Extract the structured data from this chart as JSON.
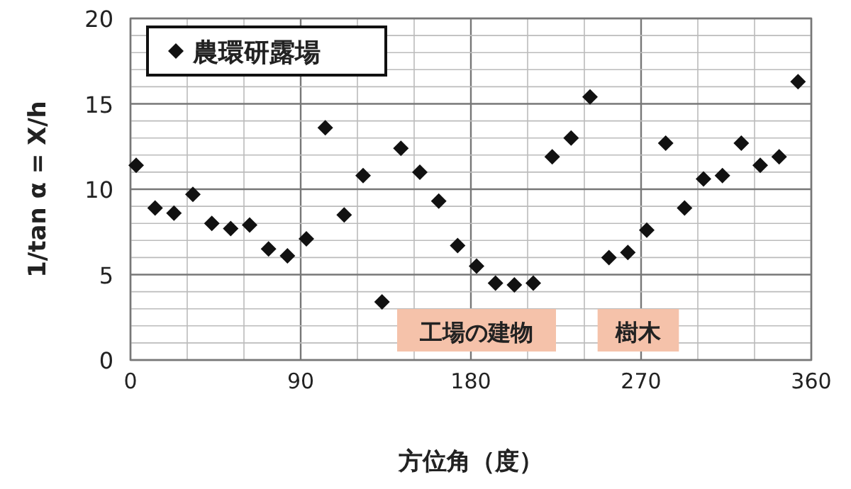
{
  "chart_data": {
    "type": "scatter",
    "xlabel": "方位角（度）",
    "ylabel": "1/tan α = X/h",
    "x": [
      3,
      13,
      23,
      33,
      43,
      53,
      63,
      73,
      83,
      93,
      103,
      113,
      123,
      133,
      143,
      153,
      163,
      173,
      183,
      193,
      203,
      213,
      223,
      233,
      243,
      253,
      263,
      273,
      283,
      293,
      303,
      313,
      323,
      333,
      343,
      353
    ],
    "series": [
      {
        "name": "農環研露場",
        "color": "#111111",
        "values": [
          11.4,
          8.9,
          8.6,
          9.7,
          8.0,
          7.7,
          7.9,
          6.5,
          6.1,
          7.1,
          13.6,
          8.5,
          10.8,
          3.4,
          12.4,
          11.0,
          9.3,
          6.7,
          5.5,
          4.5,
          4.4,
          4.5,
          11.9,
          13.0,
          15.4,
          6.0,
          6.3,
          7.6,
          12.7,
          8.9,
          10.6,
          10.8,
          12.7,
          11.4,
          11.9,
          16.3
        ]
      }
    ],
    "marker": "diamond",
    "xlim": [
      0,
      360
    ],
    "xticks": [
      0,
      {
        "value": 30,
        "label": null
      },
      {
        "value": 60,
        "label": null
      },
      90,
      {
        "value": 120,
        "label": null
      },
      {
        "value": 150,
        "label": null
      },
      180,
      {
        "value": 210,
        "label": null
      },
      {
        "value": 240,
        "label": null
      },
      270,
      {
        "value": 300,
        "label": null
      },
      {
        "value": 330,
        "label": null
      },
      360
    ],
    "ylim": [
      0,
      20
    ],
    "yticks": [
      0,
      {
        "value": 1,
        "label": null
      },
      {
        "value": 2,
        "label": null
      },
      {
        "value": 3,
        "label": null
      },
      {
        "value": 4,
        "label": null
      },
      5,
      {
        "value": 6,
        "label": null
      },
      {
        "value": 7,
        "label": null
      },
      {
        "value": 8,
        "label": null
      },
      {
        "value": 9,
        "label": null
      },
      10,
      {
        "value": 11,
        "label": null
      },
      {
        "value": 12,
        "label": null
      },
      {
        "value": 13,
        "label": null
      },
      {
        "value": 14,
        "label": null
      },
      15,
      {
        "value": 16,
        "label": null
      },
      {
        "value": 17,
        "label": null
      },
      {
        "value": 18,
        "label": null
      },
      {
        "value": 19,
        "label": null
      },
      20
    ],
    "grid": true,
    "legend": "top left",
    "bands": [
      {
        "axis": "x",
        "from": 141,
        "to": 225,
        "label": "工場の建物",
        "color": "#f5c2aa"
      },
      {
        "axis": "x",
        "from": 247,
        "to": 290,
        "label": "樹木",
        "color": "#f5c2aa"
      }
    ]
  }
}
